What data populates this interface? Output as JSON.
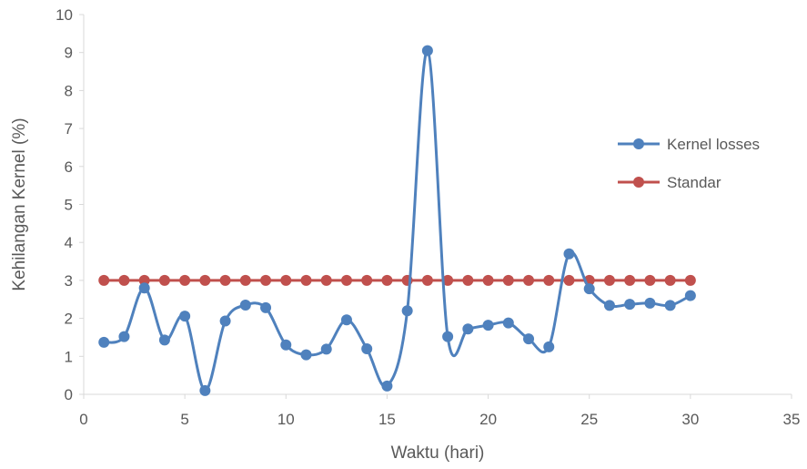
{
  "chart_data": {
    "type": "scatter",
    "title": "",
    "xlabel": "Waktu (hari)",
    "ylabel": "Kehilangan Kernel (%)",
    "xlim": [
      0,
      35
    ],
    "ylim": [
      0,
      10
    ],
    "x_ticks": [
      0,
      5,
      10,
      15,
      20,
      25,
      30,
      35
    ],
    "y_ticks": [
      0,
      1,
      2,
      3,
      4,
      5,
      6,
      7,
      8,
      9,
      10
    ],
    "grid": false,
    "smooth_lines": true,
    "legend_position": "right",
    "x": [
      1,
      2,
      3,
      4,
      5,
      6,
      7,
      8,
      9,
      10,
      11,
      12,
      13,
      14,
      15,
      16,
      17,
      18,
      19,
      20,
      21,
      22,
      23,
      24,
      25,
      26,
      27,
      28,
      29,
      30
    ],
    "series": [
      {
        "name": "Kernel losses",
        "color": "#4f81bd",
        "values": [
          1.37,
          1.52,
          2.8,
          1.43,
          2.06,
          0.1,
          1.93,
          2.35,
          2.28,
          1.3,
          1.04,
          1.19,
          1.96,
          1.2,
          0.22,
          2.2,
          9.05,
          1.52,
          1.72,
          1.82,
          1.88,
          1.46,
          1.25,
          3.7,
          2.78,
          2.34,
          2.37,
          2.4,
          2.34,
          2.6
        ]
      },
      {
        "name": "Standar",
        "color": "#c0504d",
        "values": [
          3,
          3,
          3,
          3,
          3,
          3,
          3,
          3,
          3,
          3,
          3,
          3,
          3,
          3,
          3,
          3,
          3,
          3,
          3,
          3,
          3,
          3,
          3,
          3,
          3,
          3,
          3,
          3,
          3,
          3
        ]
      }
    ]
  }
}
